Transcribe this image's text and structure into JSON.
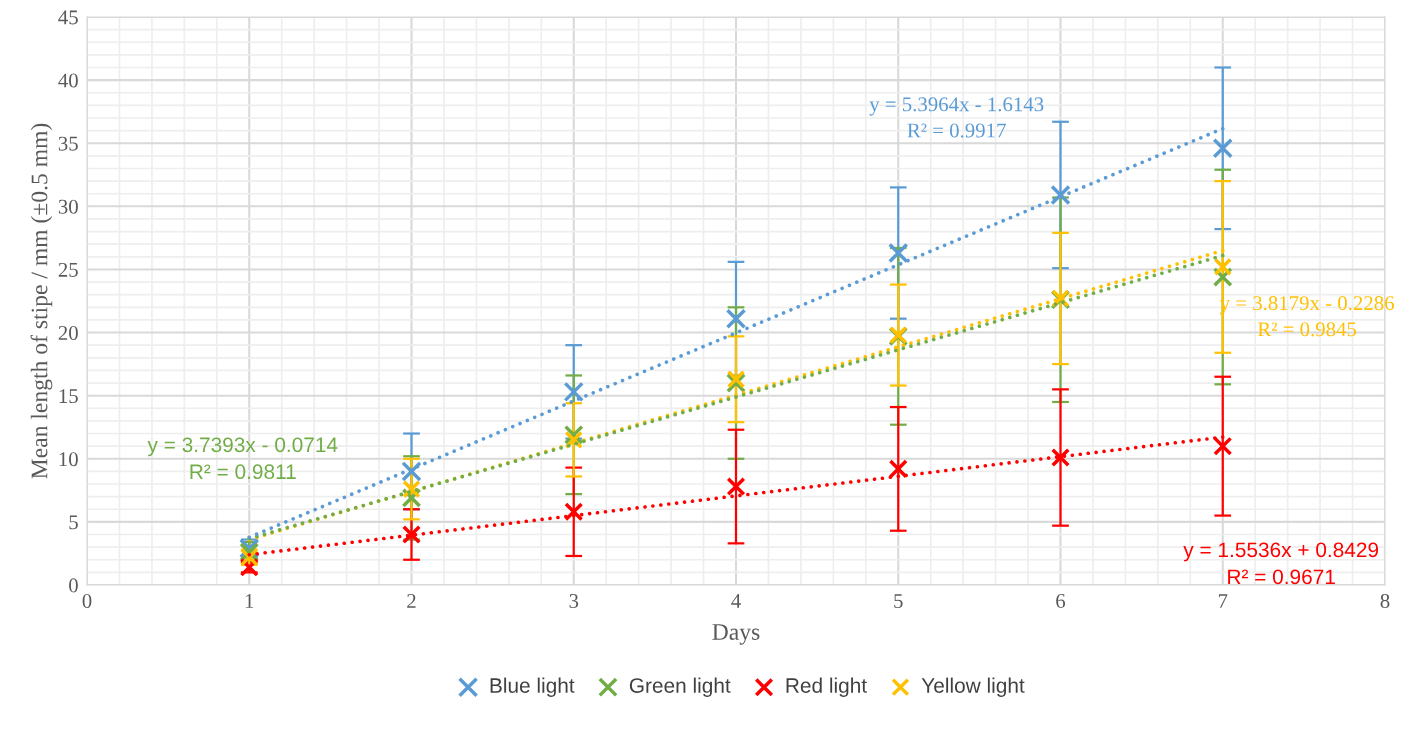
{
  "chart_data": {
    "type": "scatter",
    "xlabel": "Days",
    "ylabel": "Mean length of stipe / mm (±0.5 mm)",
    "x": [
      1,
      2,
      3,
      4,
      5,
      6,
      7
    ],
    "xlim": [
      0,
      8
    ],
    "xticks": [
      0,
      1,
      2,
      3,
      4,
      5,
      6,
      7,
      8
    ],
    "ylim": [
      0,
      45
    ],
    "yticks": [
      0,
      5,
      10,
      15,
      20,
      25,
      30,
      35,
      40,
      45
    ],
    "grid": true,
    "legend": "bottom",
    "marker": "cross",
    "series": [
      {
        "name": "Blue light",
        "color": "#5b9bd5",
        "values": [
          2.9,
          9.0,
          15.3,
          21.1,
          26.3,
          30.9,
          34.6
        ],
        "errors": [
          0.7,
          3.0,
          3.7,
          4.5,
          5.2,
          5.8,
          6.4
        ]
      },
      {
        "name": "Green light",
        "color": "#70ad47",
        "values": [
          2.6,
          6.9,
          11.9,
          16.0,
          19.7,
          22.6,
          24.4
        ],
        "errors": [
          0.8,
          3.3,
          4.7,
          6.0,
          7.0,
          8.1,
          8.5
        ]
      },
      {
        "name": "Red light",
        "color": "#ff0000",
        "values": [
          1.4,
          4.0,
          5.8,
          7.8,
          9.2,
          10.1,
          11.0
        ],
        "errors": [
          0.4,
          2.0,
          3.5,
          4.5,
          4.9,
          5.4,
          5.5
        ]
      },
      {
        "name": "Yellow light",
        "color": "#ffc000",
        "values": [
          2.2,
          7.6,
          11.5,
          16.3,
          19.8,
          22.7,
          25.2
        ],
        "errors": [
          0.6,
          2.4,
          2.9,
          3.4,
          4.0,
          5.2,
          6.8
        ]
      },
      {
        "type": "line",
        "color": "#5b9bd5",
        "values": [
          3.78,
          9.18,
          14.58,
          19.97,
          25.37,
          30.76,
          36.16
        ],
        "line_style": "dotted",
        "marker": "none"
      },
      {
        "type": "line",
        "color": "#70ad47",
        "values": [
          3.67,
          7.41,
          11.15,
          14.89,
          18.63,
          22.36,
          26.1
        ],
        "line_style": "dotted",
        "marker": "none"
      },
      {
        "type": "line",
        "color": "#ff0000",
        "values": [
          2.4,
          3.95,
          5.5,
          7.06,
          8.61,
          10.17,
          11.72
        ],
        "line_style": "dotted",
        "marker": "none"
      },
      {
        "type": "line",
        "color": "#ffc000",
        "values": [
          3.59,
          7.41,
          11.23,
          15.04,
          18.86,
          22.68,
          26.5
        ],
        "line_style": "dotted",
        "marker": "none"
      }
    ],
    "annotations": [
      "y = 5.3964x - 1.6143\nR² = 0.9917",
      "y = 3.7393x - 0.0714\nR² = 0.9811",
      "y = 1.5536x + 0.8429\nR² = 0.9671",
      "y = 3.8179x - 0.2286\nR² = 0.9845"
    ]
  }
}
